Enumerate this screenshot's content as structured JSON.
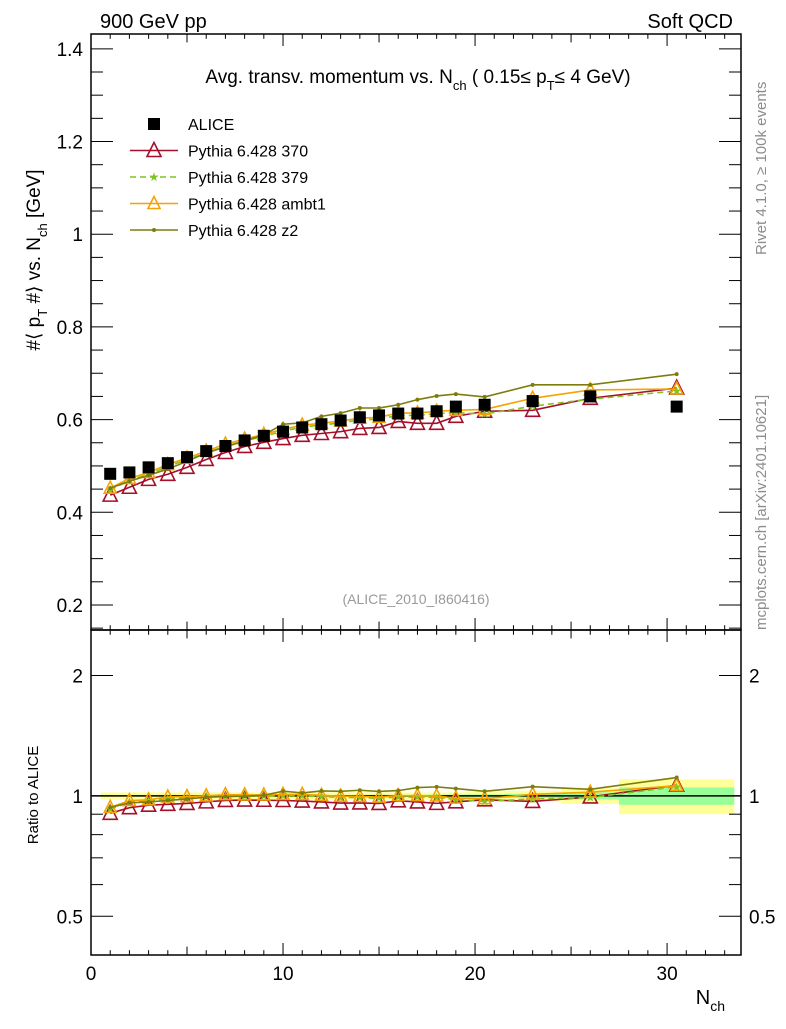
{
  "header": {
    "left": "900 GeV pp",
    "right": "Soft QCD"
  },
  "side_labels": {
    "rivet": "Rivet 4.1.0, ≥ 100k events",
    "mcplots": "mcplots.cern.ch [arXiv:2401.10621]"
  },
  "chart_data": [
    {
      "type": "line",
      "title": "Avg. transv. momentum vs. N_ch ( 0.15≤ p_T≤ 4 GeV)",
      "title_parts": {
        "a": "Avg. transv. momentum vs. N",
        "b": "ch",
        "c": " ( 0.15≤ p",
        "d": "T",
        "e": "≤ 4 GeV)"
      },
      "ylabel": "#⟨ p_T #⟩ vs. N_ch [GeV]",
      "ylabel_parts": {
        "a": "#⟨ p",
        "b": "T",
        "c": " #⟩ vs. N",
        "d": "ch",
        "e": " [GeV]"
      },
      "watermark": "(ALICE_2010_I860416)",
      "xlim": [
        0,
        33.85
      ],
      "ylim": [
        0.146,
        1.432
      ],
      "yticks": [
        0.2,
        0.4,
        0.6,
        0.8,
        1,
        1.2,
        1.4
      ],
      "ytick_labels": [
        "0.2",
        "0.4",
        "0.6",
        "0.8",
        "1",
        "1.2",
        "1.4"
      ],
      "legend_placement": "top-left",
      "x": [
        1,
        2,
        3,
        4,
        5,
        6,
        7,
        8,
        9,
        10,
        11,
        12,
        13,
        14,
        15,
        16,
        17,
        18,
        19,
        20.5,
        23,
        26,
        30.5
      ],
      "bin_edges": [
        0.5,
        1.5,
        2.5,
        3.5,
        4.5,
        5.5,
        6.5,
        7.5,
        8.5,
        9.5,
        10.5,
        11.5,
        12.5,
        13.5,
        14.5,
        15.5,
        16.5,
        17.5,
        18.5,
        19.5,
        21.5,
        24.5,
        27.5,
        33.5
      ],
      "series": [
        {
          "name": "ALICE",
          "color": "#000000",
          "marker": "square",
          "line": "none",
          "values": [
            0.483,
            0.486,
            0.497,
            0.506,
            0.519,
            0.532,
            0.543,
            0.555,
            0.565,
            0.574,
            0.583,
            0.59,
            0.598,
            0.605,
            0.609,
            0.613,
            0.613,
            0.618,
            0.628,
            0.632,
            0.64,
            0.65,
            0.628
          ],
          "rel_err_total": [
            0.02,
            0.02,
            0.02,
            0.02,
            0.02,
            0.02,
            0.02,
            0.02,
            0.02,
            0.02,
            0.02,
            0.02,
            0.02,
            0.02,
            0.02,
            0.02,
            0.02,
            0.02,
            0.02,
            0.025,
            0.03,
            0.045,
            0.1
          ],
          "rel_err_stat": [
            0.004,
            0.004,
            0.004,
            0.004,
            0.004,
            0.004,
            0.004,
            0.004,
            0.004,
            0.005,
            0.005,
            0.005,
            0.005,
            0.005,
            0.006,
            0.006,
            0.006,
            0.007,
            0.007,
            0.008,
            0.012,
            0.02,
            0.05
          ]
        },
        {
          "name": "Pythia 6.428 370",
          "color": "#a50f2a",
          "marker": "triangle-open",
          "line": "solid",
          "values": [
            0.437,
            0.454,
            0.471,
            0.482,
            0.497,
            0.514,
            0.529,
            0.542,
            0.551,
            0.559,
            0.566,
            0.57,
            0.574,
            0.581,
            0.583,
            0.596,
            0.592,
            0.592,
            0.607,
            0.618,
            0.62,
            0.646,
            0.668
          ]
        },
        {
          "name": "Pythia 6.428 379",
          "color": "#7fc41d",
          "marker": "star",
          "line": "dashed",
          "values": [
            0.448,
            0.469,
            0.482,
            0.499,
            0.513,
            0.528,
            0.543,
            0.554,
            0.564,
            0.575,
            0.584,
            0.588,
            0.593,
            0.599,
            0.601,
            0.609,
            0.609,
            0.613,
            0.615,
            0.612,
            0.629,
            0.644,
            0.662
          ]
        },
        {
          "name": "Pythia 6.428 ambt1",
          "color": "#f5a300",
          "marker": "triangle-filled",
          "line": "solid",
          "values": [
            0.452,
            0.473,
            0.486,
            0.503,
            0.517,
            0.532,
            0.547,
            0.558,
            0.568,
            0.579,
            0.588,
            0.592,
            0.597,
            0.603,
            0.605,
            0.614,
            0.614,
            0.618,
            0.62,
            0.622,
            0.646,
            0.664,
            0.666
          ]
        },
        {
          "name": "Pythia 6.428 z2",
          "color": "#7d7d0e",
          "marker": "dot",
          "line": "solid",
          "values": [
            0.452,
            0.467,
            0.48,
            0.493,
            0.51,
            0.528,
            0.541,
            0.554,
            0.567,
            0.59,
            0.593,
            0.607,
            0.614,
            0.625,
            0.625,
            0.632,
            0.643,
            0.651,
            0.655,
            0.649,
            0.675,
            0.675,
            0.698
          ]
        }
      ]
    },
    {
      "type": "line",
      "title": "",
      "ylabel": "Ratio to ALICE",
      "xlabel": "N_ch",
      "xlabel_parts": {
        "a": "N",
        "b": "ch"
      },
      "scale": "log",
      "ylim": [
        0.4,
        2.6
      ],
      "yticks": [
        0.5,
        1,
        2
      ],
      "ytick_labels": [
        "0.5",
        "1",
        "2"
      ],
      "xticks": [
        0,
        10,
        20,
        30
      ],
      "xtick_labels": [
        "0",
        "10",
        "20",
        "30"
      ],
      "reference": "ALICE",
      "band_colors": {
        "total": "#ffff99",
        "stat": "#99ff99"
      }
    }
  ]
}
